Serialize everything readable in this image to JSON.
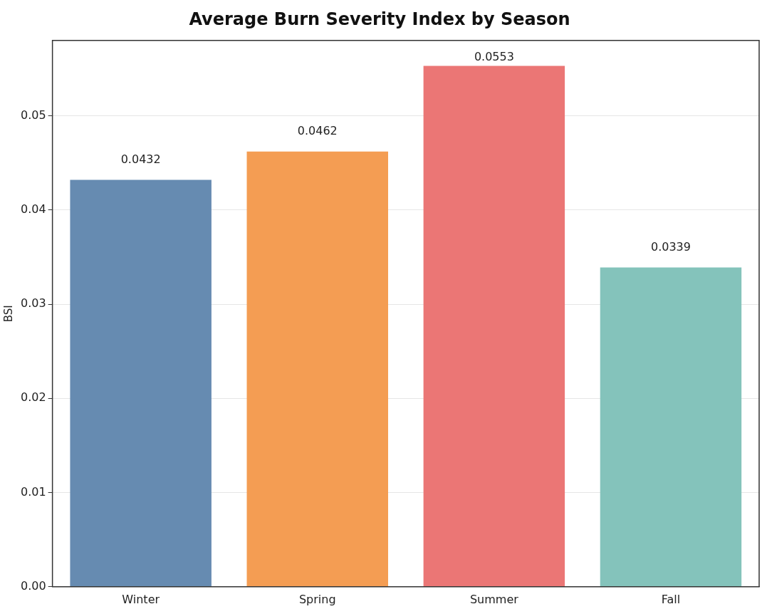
{
  "chart_data": {
    "type": "bar",
    "title": "Average Burn Severity Index by Season",
    "ylabel": "BSI",
    "categories": [
      "Winter",
      "Spring",
      "Summer",
      "Fall"
    ],
    "values": [
      0.0432,
      0.0462,
      0.0553,
      0.0339
    ],
    "colors": [
      "#668bb1",
      "#f49d53",
      "#eb7675",
      "#84c3bb"
    ],
    "ylim": [
      0,
      0.058
    ],
    "yticks": [
      {
        "value": 0,
        "label": "0.00"
      },
      {
        "value": 0.01,
        "label": "0.01"
      },
      {
        "value": 0.02,
        "label": "0.02"
      },
      {
        "value": 0.03,
        "label": "0.03"
      },
      {
        "value": 0.04,
        "label": "0.04"
      },
      {
        "value": 0.05,
        "label": "0.05"
      }
    ],
    "grid": "y",
    "data_labels": true
  }
}
